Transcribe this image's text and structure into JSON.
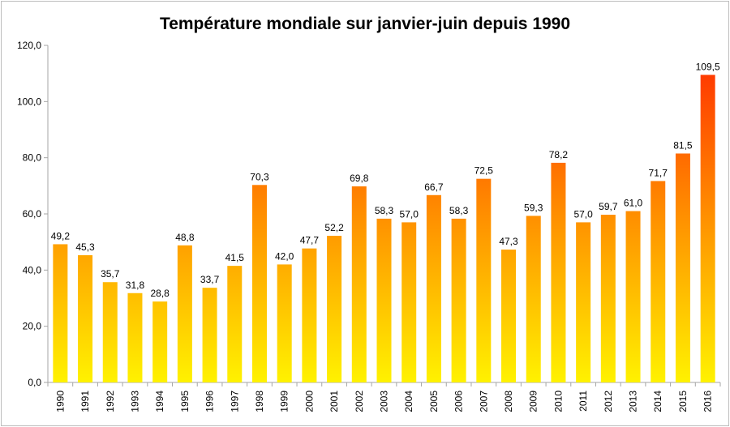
{
  "chart_data": {
    "type": "bar",
    "title": "Température mondiale sur janvier-juin depuis 1990",
    "xlabel": "",
    "ylabel": "",
    "ylim": [
      0,
      120
    ],
    "yticks": [
      "0,0",
      "20,0",
      "40,0",
      "60,0",
      "80,0",
      "100,0",
      "120,0"
    ],
    "categories": [
      "1990",
      "1991",
      "1992",
      "1993",
      "1994",
      "1995",
      "1996",
      "1997",
      "1998",
      "1999",
      "2000",
      "2001",
      "2002",
      "2003",
      "2004",
      "2005",
      "2006",
      "2007",
      "2008",
      "2009",
      "2010",
      "2011",
      "2012",
      "2013",
      "2014",
      "2015",
      "2016"
    ],
    "values": [
      49.2,
      45.3,
      35.7,
      31.8,
      28.8,
      48.8,
      33.7,
      41.5,
      70.3,
      42.0,
      47.7,
      52.2,
      69.8,
      58.3,
      57.0,
      66.7,
      58.3,
      72.5,
      47.3,
      59.3,
      78.2,
      57.0,
      59.7,
      61.0,
      71.7,
      81.5,
      109.5
    ],
    "data_labels": [
      "49,2",
      "45,3",
      "35,7",
      "31,8",
      "28,8",
      "48,8",
      "33,7",
      "41,5",
      "70,3",
      "42,0",
      "47,7",
      "52,2",
      "69,8",
      "58,3",
      "57,0",
      "66,7",
      "58,3",
      "72,5",
      "47,3",
      "59,3",
      "78,2",
      "57,0",
      "59,7",
      "61,0",
      "71,7",
      "81,5",
      "109,5"
    ],
    "grid": false,
    "legend": "none",
    "colors": {
      "bar_top": "#ff2a00",
      "bar_bottom": "#fff200",
      "axis": "#a6a6a6"
    }
  }
}
